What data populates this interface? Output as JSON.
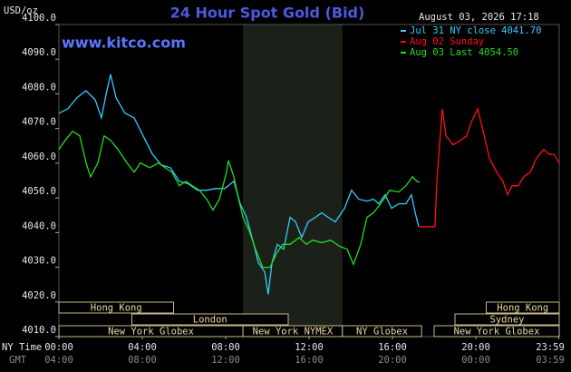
{
  "chart_data": {
    "type": "line",
    "title": "24 Hour Spot Gold (Bid)",
    "website": "www.kitco.com",
    "unit_label": "USD/oz",
    "timestamp": "August 03, 2026 17:18",
    "x_row_labels": [
      "NY Time",
      "GMT"
    ],
    "xlim": [
      0,
      24
    ],
    "xticks": [
      {
        "value": 0,
        "label": "00:00"
      },
      {
        "value": 4,
        "label": "04:00"
      },
      {
        "value": 8,
        "label": "08:00"
      },
      {
        "value": 12,
        "label": "12:00"
      },
      {
        "value": 16,
        "label": "16:00"
      },
      {
        "value": 20,
        "label": "20:00"
      },
      {
        "value": 23.98,
        "label": "23:59"
      }
    ],
    "gmt_labels": [
      "04:00",
      "08:00",
      "12:00",
      "16:00",
      "20:00",
      "00:00",
      "03:59"
    ],
    "ylim": [
      4010,
      4100
    ],
    "yticks": [
      {
        "value": 4010,
        "label": "4010.0"
      },
      {
        "value": 4020,
        "label": "4020.0"
      },
      {
        "value": 4030,
        "label": "4030.0"
      },
      {
        "value": 4040,
        "label": "4040.0"
      },
      {
        "value": 4050,
        "label": "4050.0"
      },
      {
        "value": 4060,
        "label": "4060.0"
      },
      {
        "value": 4070,
        "label": "4070.0"
      },
      {
        "value": 4080,
        "label": "4080.0"
      },
      {
        "value": 4090,
        "label": "4090.0"
      },
      {
        "value": 4100,
        "label": "4100.0"
      }
    ],
    "series": [
      {
        "name": "Jul 31 NY close 4041.70",
        "color": "#33ccff",
        "x": [
          0,
          0.43,
          0.87,
          1.3,
          1.74,
          2.04,
          2.3,
          2.48,
          2.74,
          3.17,
          3.61,
          4.04,
          4.48,
          4.91,
          5.35,
          5.78,
          6.22,
          6.65,
          7.09,
          7.52,
          7.96,
          8.39,
          8.7,
          9,
          9.26,
          9.57,
          9.87,
          10.04,
          10.22,
          10.48,
          10.78,
          11.09,
          11.35,
          11.65,
          11.96,
          12.3,
          12.61,
          12.91,
          13.26,
          13.7,
          14.04,
          14.39,
          14.78,
          15.09,
          15.35,
          15.65,
          15.96,
          16.3,
          16.65,
          16.91,
          17.09,
          17.26
        ],
        "values": [
          4074.4,
          4075.7,
          4078.9,
          4080.9,
          4078.3,
          4073.1,
          4080.9,
          4085.6,
          4078.9,
          4074.4,
          4073.1,
          4067.9,
          4062.7,
          4059.5,
          4058.7,
          4054.8,
          4054,
          4052.2,
          4052.2,
          4052.7,
          4052.7,
          4054.8,
          4048.3,
          4044.4,
          4038.6,
          4031.3,
          4028.7,
          4022.2,
          4031.3,
          4036.6,
          4035.2,
          4044.4,
          4043.1,
          4038.6,
          4043.1,
          4044.4,
          4045.7,
          4044.4,
          4043.1,
          4047,
          4052.2,
          4049.6,
          4049.1,
          4049.6,
          4048.3,
          4050.9,
          4047,
          4048.3,
          4048.3,
          4050.9,
          4045.7,
          4041.7
        ]
      },
      {
        "name": "Aug 02 Sunday",
        "color": "#ff1010",
        "x": [
          17.26,
          18.04,
          18.13,
          18.26,
          18.39,
          18.57,
          18.91,
          19.26,
          19.57,
          19.78,
          20.09,
          20.35,
          20.65,
          21,
          21.3,
          21.52,
          21.74,
          22.04,
          22.3,
          22.61,
          22.91,
          23.26,
          23.48,
          23.78,
          24
        ],
        "values": [
          4041.7,
          4041.7,
          4054.8,
          4065.3,
          4075.7,
          4067.9,
          4065.3,
          4066.6,
          4067.9,
          4071.8,
          4075.7,
          4069.2,
          4061.4,
          4057.4,
          4054.8,
          4050.9,
          4053.5,
          4053.5,
          4056.1,
          4057.4,
          4061.4,
          4064,
          4062.7,
          4062.4,
          4060
        ]
      },
      {
        "name": "Aug 03 Last 4054.50",
        "color": "#22dd22",
        "x": [
          0,
          0.3,
          0.65,
          1,
          1.3,
          1.52,
          1.87,
          2.17,
          2.48,
          2.83,
          3.26,
          3.61,
          3.91,
          4.35,
          4.78,
          5.09,
          5.43,
          5.78,
          6.09,
          6.39,
          6.74,
          7.09,
          7.39,
          7.7,
          8.04,
          8.13,
          8.39,
          8.57,
          8.83,
          9.13,
          9.43,
          9.78,
          10.13,
          10.43,
          10.74,
          11.09,
          11.52,
          11.87,
          12.17,
          12.61,
          13.04,
          13.48,
          13.83,
          14.13,
          14.48,
          14.78,
          15.09,
          15.43,
          15.87,
          16.3,
          16.65,
          16.96,
          17.17,
          17.3
        ],
        "values": [
          4064,
          4066.6,
          4069.2,
          4067.9,
          4060.1,
          4056.1,
          4060.1,
          4067.9,
          4066.6,
          4064,
          4060.1,
          4057.4,
          4060.1,
          4058.7,
          4060.1,
          4058.7,
          4057.4,
          4053.5,
          4054.8,
          4053.5,
          4052.2,
          4049.6,
          4046.5,
          4049.6,
          4057.4,
          4060.8,
          4056.1,
          4051,
          4044.4,
          4040.5,
          4035.2,
          4030,
          4030,
          4033.9,
          4036.6,
          4036.6,
          4038.6,
          4036.6,
          4037.8,
          4037.1,
          4037.8,
          4036,
          4035.2,
          4030.8,
          4036.6,
          4044.4,
          4045.7,
          4048.3,
          4052.2,
          4051.7,
          4053.5,
          4056.1,
          4054.8,
          4054.5
        ]
      }
    ],
    "sessions": [
      {
        "name": "Hong Kong",
        "start": 0,
        "end": 5.5
      },
      {
        "name": "Hong Kong",
        "start": 20.5,
        "end": 24
      },
      {
        "name": "London",
        "start": 3.5,
        "end": 11
      },
      {
        "name": "Sydney",
        "start": 19,
        "end": 24
      },
      {
        "name": "New York Globex",
        "start": 0,
        "end": 8.83
      },
      {
        "name": "New York NYMEX",
        "start": 8.83,
        "end": 13.6
      },
      {
        "name": "NY Globex",
        "start": 13.6,
        "end": 17.4
      },
      {
        "name": "New York Globex",
        "start": 18,
        "end": 24
      }
    ]
  }
}
